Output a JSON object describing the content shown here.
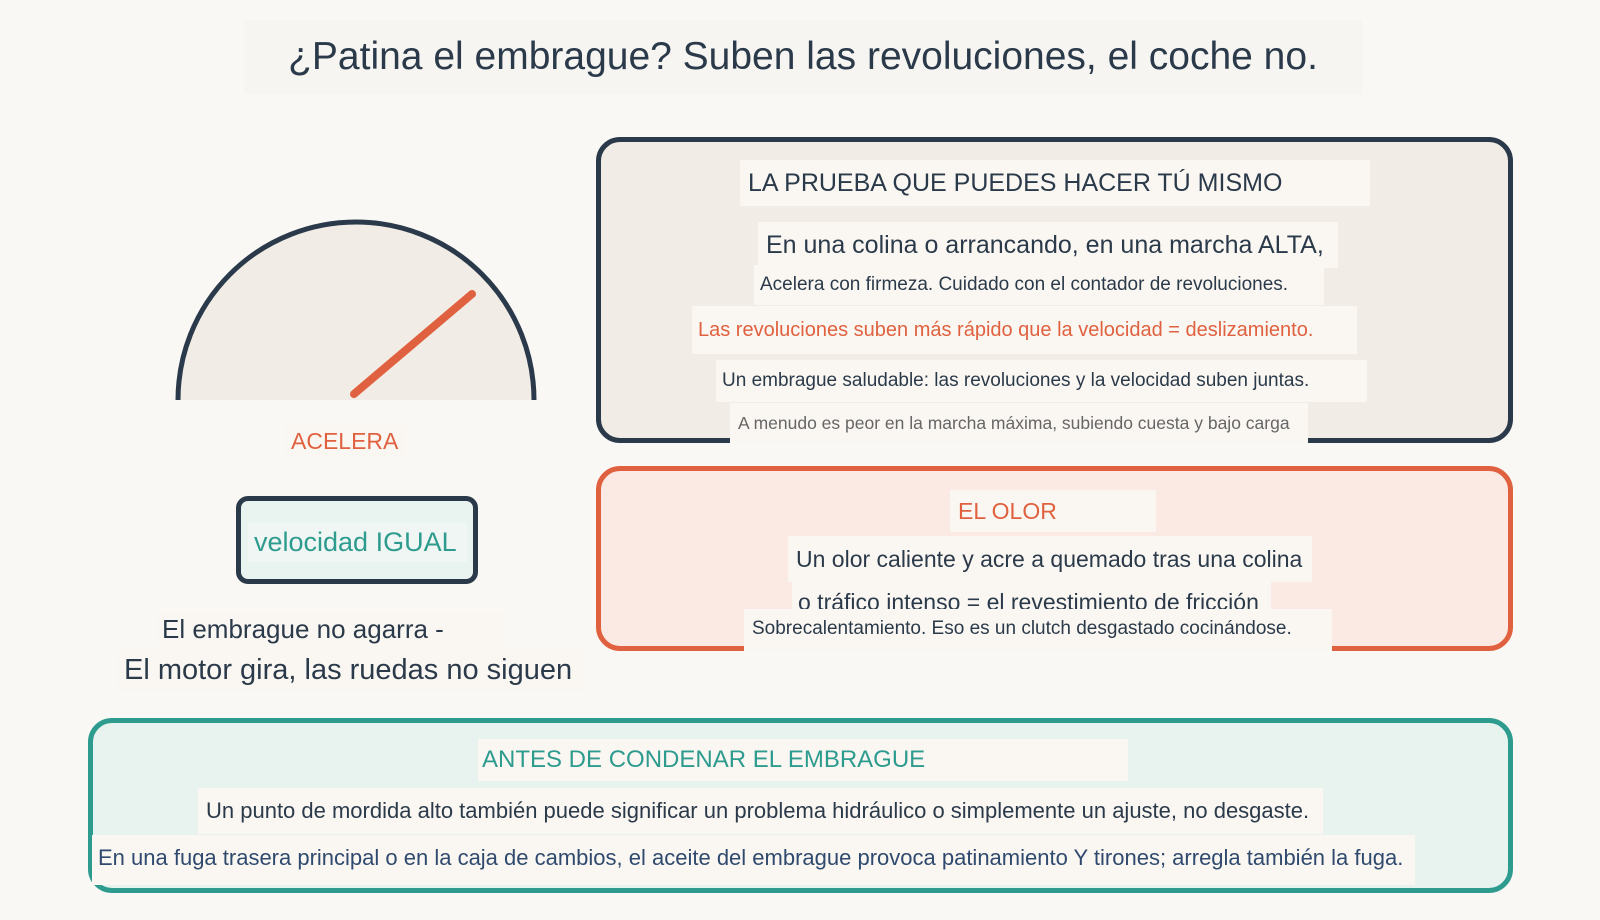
{
  "title": "¿Patina el embrague? Suben las revoluciones, el coche no.",
  "gauge": {
    "label": "ACELERA",
    "colors": {
      "outline": "#2b3a4a",
      "fill": "#f1ece5",
      "needle": "#e0613f"
    }
  },
  "speed_box": {
    "label": "velocidad IGUAL"
  },
  "caption": {
    "line1": "El embrague no agarra -",
    "line2": "El motor gira, las ruedas no siguen"
  },
  "test_panel": {
    "title": "LA PRUEBA QUE PUEDES HACER TÚ MISMO",
    "lines": [
      "En una colina o arrancando, en una marcha ALTA,",
      "Acelera con firmeza. Cuidado con el contador de revoluciones.",
      "Las revoluciones suben más rápido que la velocidad = deslizamiento.",
      "Un embrague saludable: las revoluciones y la velocidad suben juntas.",
      "A menudo es peor en la marcha máxima, subiendo cuesta y bajo carga"
    ]
  },
  "smell_panel": {
    "title": "EL OLOR",
    "lines": [
      "Un olor caliente y acre a quemado tras una colina",
      "o tráfico intenso = el revestimiento de fricción",
      "Sobrecalentamiento. Eso es un clutch desgastado cocinándose."
    ]
  },
  "before_panel": {
    "title": "ANTES DE CONDENAR EL EMBRAGUE",
    "lines": [
      "Un punto de mordida alto también puede significar un problema hidráulico o simplemente un ajuste, no desgaste.",
      "En una fuga trasera principal o en la caja de cambios, el aceite del embrague provoca patinamiento Y tirones; arregla también la fuga."
    ]
  },
  "colors": {
    "navy": "#2b3a4a",
    "orange": "#e0613f",
    "teal": "#2e9b8f",
    "background": "#faf8f4"
  }
}
